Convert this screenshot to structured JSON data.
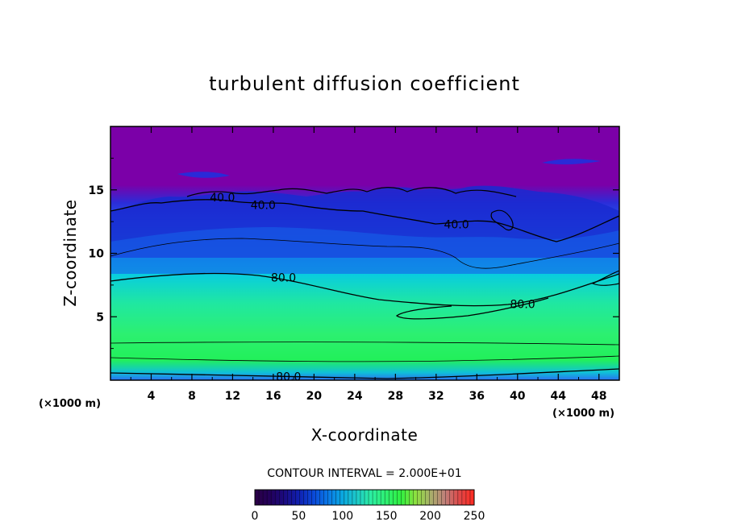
{
  "chart_data": {
    "type": "heatmap",
    "title": "turbulent diffusion coefficient",
    "xlabel": "X-coordinate",
    "ylabel": "Z-coordinate",
    "x_unit": "(×1000 m)",
    "z_unit": "(×1000 m)",
    "xlim": [
      0,
      50
    ],
    "ylim": [
      0,
      20
    ],
    "x_ticks": [
      4,
      8,
      12,
      16,
      20,
      24,
      28,
      32,
      36,
      40,
      44,
      48
    ],
    "y_ticks": [
      5,
      10,
      15
    ],
    "contour_interval_text": "CONTOUR INTERVAL = 2.000E+01",
    "contour_labels": [
      {
        "text": "40.0",
        "x": 11,
        "z": 14.4
      },
      {
        "text": "40.0",
        "x": 15,
        "z": 13.8
      },
      {
        "text": "40.0",
        "x": 34,
        "z": 12.3
      },
      {
        "text": "80.0",
        "x": 17,
        "z": 8.1
      },
      {
        "text": "80.0",
        "x": 40.5,
        "z": 6.0
      },
      {
        "text": "80.0",
        "x": 17.5,
        "z": 0.3
      }
    ],
    "colorbar": {
      "min": 0,
      "max": 250,
      "ticks": [
        0,
        50,
        100,
        150,
        200,
        250
      ],
      "colors": [
        "#2a0045",
        "#23005a",
        "#1b0a7f",
        "#1020b0",
        "#0a48d8",
        "#0a78e6",
        "#0aa8e0",
        "#1ecbc8",
        "#2cf0a0",
        "#2ef070",
        "#30f040",
        "#8ee040",
        "#a8b06a",
        "#c0807a",
        "#e04848",
        "#ff2a20"
      ]
    }
  }
}
